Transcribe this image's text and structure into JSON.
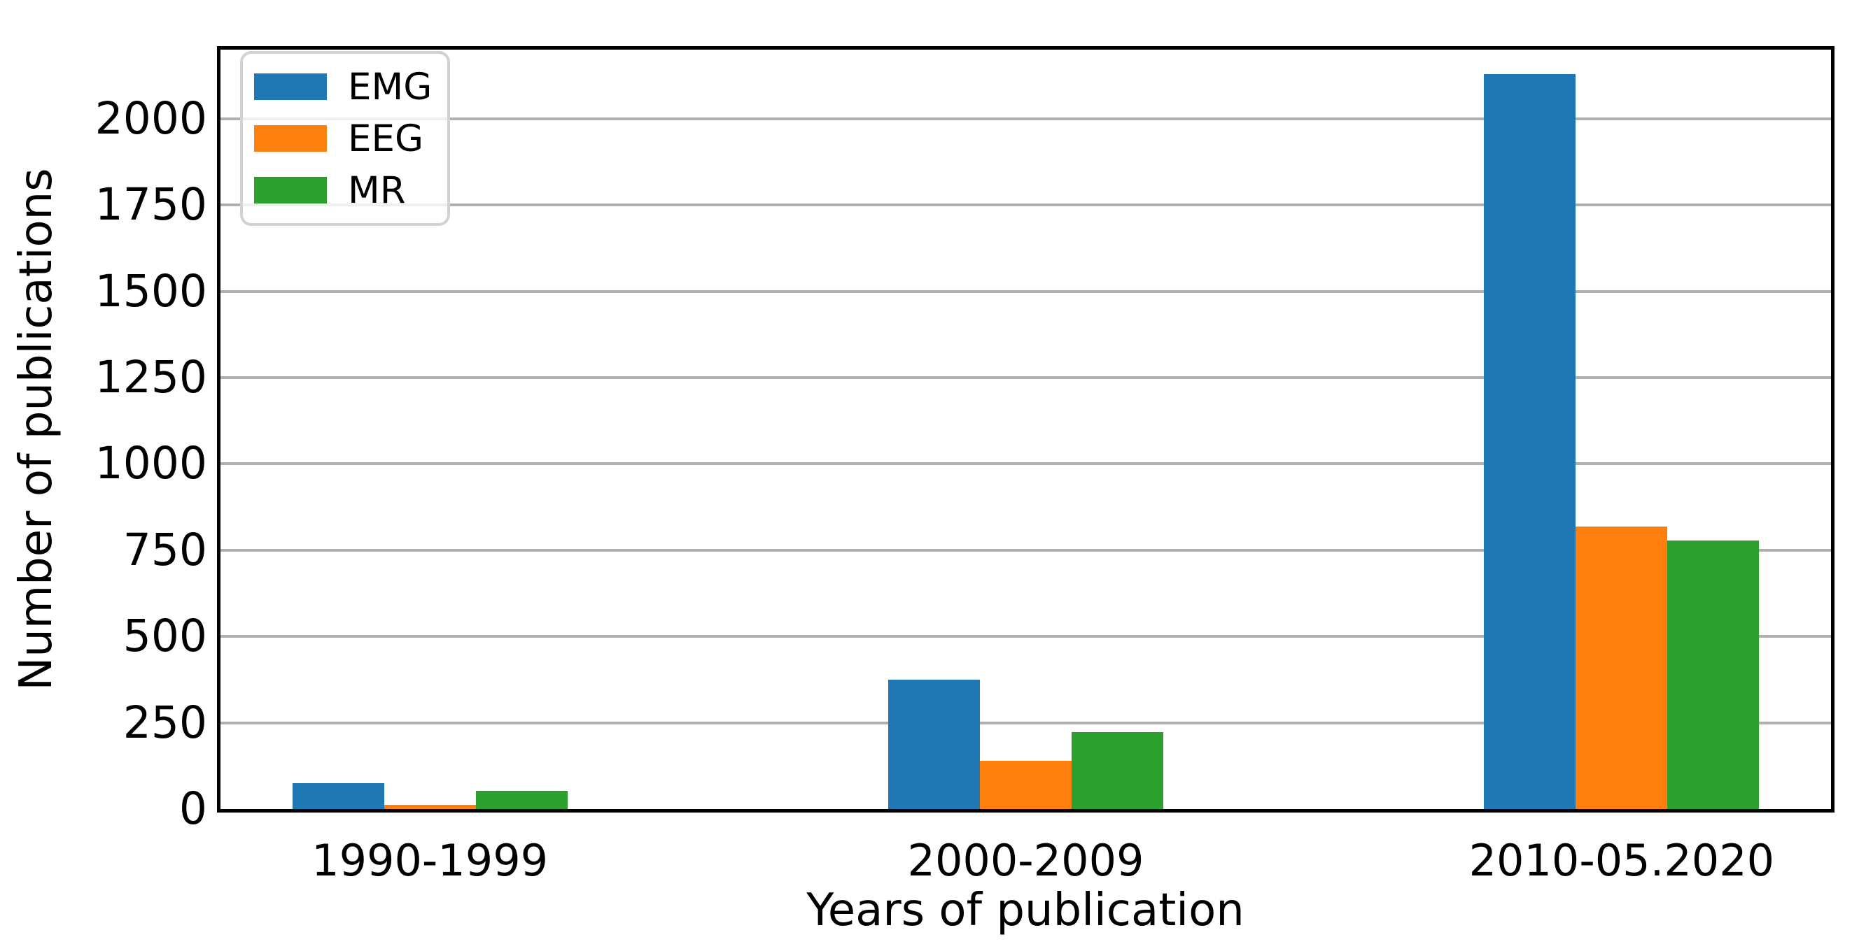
{
  "chart_data": {
    "type": "bar",
    "title": "",
    "xlabel": "Years of publication",
    "ylabel": "Number of publications",
    "categories": [
      "1990-1999",
      "2000-2009",
      "2010-05.2020"
    ],
    "series": [
      {
        "name": "EMG",
        "color": "#1f77b4",
        "values": [
          75,
          375,
          2130
        ]
      },
      {
        "name": "EEG",
        "color": "#ff7f0e",
        "values": [
          12,
          140,
          818
        ]
      },
      {
        "name": "MR",
        "color": "#2ca02c",
        "values": [
          52,
          222,
          777
        ]
      }
    ],
    "yticks": [
      0,
      250,
      500,
      750,
      1000,
      1250,
      1500,
      1750,
      2000
    ],
    "ylim": [
      0,
      2200
    ],
    "grid": true,
    "grid_color": "#b0b0b0",
    "background_color": "#ffffff",
    "axis_color": "#000000",
    "legend_position": "upper left",
    "legend_labels": [
      "EMG",
      "EEG",
      "MR"
    ]
  }
}
